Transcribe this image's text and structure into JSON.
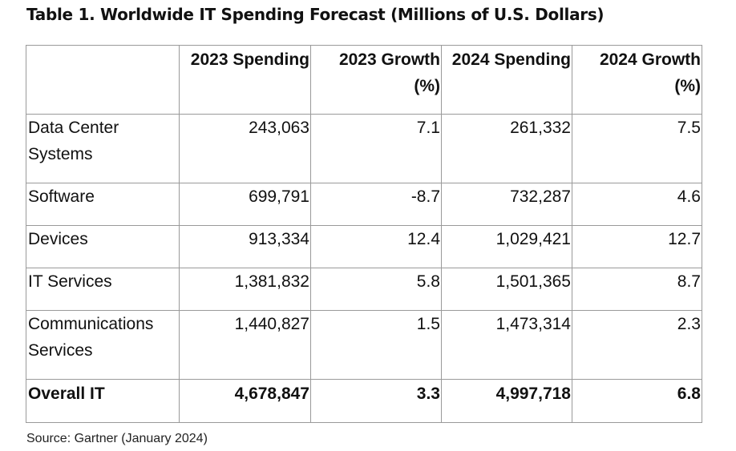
{
  "title": "Table 1. Worldwide IT Spending Forecast (Millions of U.S. Dollars)",
  "columns": [
    "",
    "2023 Spending",
    "2023 Growth (%)",
    "2024 Spending",
    "2024 Growth (%)"
  ],
  "rows": [
    {
      "segment": "Data Center Systems",
      "spend_2023": "243,063",
      "growth_2023": "7.1",
      "spend_2024": "261,332",
      "growth_2024": "7.5"
    },
    {
      "segment": "Software",
      "spend_2023": "699,791",
      "growth_2023": "-8.7",
      "spend_2024": "732,287",
      "growth_2024": "4.6"
    },
    {
      "segment": "Devices",
      "spend_2023": "913,334",
      "growth_2023": "12.4",
      "spend_2024": "1,029,421",
      "growth_2024": "12.7"
    },
    {
      "segment": "IT Services",
      "spend_2023": "1,381,832",
      "growth_2023": "5.8",
      "spend_2024": "1,501,365",
      "growth_2024": "8.7"
    },
    {
      "segment": "Communications Services",
      "spend_2023": "1,440,827",
      "growth_2023": "1.5",
      "spend_2024": "1,473,314",
      "growth_2024": "2.3"
    },
    {
      "segment": "Overall IT",
      "spend_2023": "4,678,847",
      "growth_2023": "3.3",
      "spend_2024": "4,997,718",
      "growth_2024": "6.8"
    }
  ],
  "source": "Source: Gartner (January 2024)"
}
